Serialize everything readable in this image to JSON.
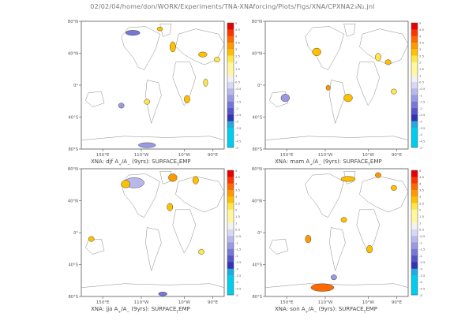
{
  "figure_title": "02/02/04/home/don/WORK/Experiments/TNA-XNAforcing/Plots/Figs/XNA/CPXNA2₃N₂.jnl",
  "colors": {
    "frame": "#555555",
    "coast": "#8a8a8a",
    "positive": [
      "#fff7a0",
      "#ffe64d",
      "#ffc000",
      "#ff9900",
      "#ff6a00",
      "#ff3300",
      "#e60000"
    ],
    "negative": [
      "#d8d8f4",
      "#b8b8ec",
      "#9a9ae2",
      "#7777d6",
      "#5555c8",
      "#3333b8",
      "#22aadd",
      "#00ccee"
    ],
    "contour": "#222222"
  },
  "colorbar_labels": [
    "5",
    "4.5",
    "4",
    "3.5",
    "3",
    "2.5",
    "2",
    "1.5",
    "1",
    "0.5",
    "-0.5",
    "-1",
    "-1.5",
    "-2",
    "-2.5",
    "-3",
    "-3.5",
    "-4",
    "-4.5",
    "-5"
  ],
  "chart_data": [
    {
      "type": "heatmap",
      "title": "XNA: djf A+/A- (9yrs): SURFACE_EMP",
      "title_parts": {
        "season": "XNA: djf A",
        "sub1": "+",
        "mid": "/A",
        "sub2": "−",
        "tail": " (9yrs): SURFACE",
        "sub3": "T",
        "end": "EMP"
      },
      "xticks": [
        "150°E",
        "110°W",
        "10°W",
        "90°E"
      ],
      "yticks": [
        "80°N",
        "40°N",
        "0°",
        "40°S",
        "80°S"
      ],
      "ylim": [
        -80,
        80
      ],
      "clim": [
        -5,
        5
      ]
    },
    {
      "type": "heatmap",
      "title": "XNA: mam A+/A- (9yrs): SURFACE_EMP",
      "title_parts": {
        "season": "XNA: mam A",
        "sub1": "+",
        "mid": "/A",
        "sub2": "−",
        "tail": " (9yrs): SURFACE",
        "sub3": "T",
        "end": "EMP"
      },
      "xticks": [
        "150°E",
        "110°W",
        "10°W",
        "90°E"
      ],
      "yticks": [
        "80°N",
        "40°N",
        "0°",
        "40°S",
        "80°S"
      ],
      "ylim": [
        -80,
        80
      ],
      "clim": [
        -5,
        5
      ]
    },
    {
      "type": "heatmap",
      "title": "XNA: jja A+/A- (9yrs): SURFACE_EMP",
      "title_parts": {
        "season": "XNA: jja A",
        "sub1": "+",
        "mid": "/A",
        "sub2": "−",
        "tail": " (9yrs): SURFACE",
        "sub3": "T",
        "end": "EMP"
      },
      "xticks": [
        "150°E",
        "110°W",
        "10°W",
        "90°E"
      ],
      "yticks": [
        "80°N",
        "40°N",
        "0°",
        "40°S",
        "80°S"
      ],
      "ylim": [
        -80,
        80
      ],
      "clim": [
        -5,
        5
      ]
    },
    {
      "type": "heatmap",
      "title": "XNA: son A+/A- (9yrs): SURFACE_EMP",
      "title_parts": {
        "season": "XNA: son A",
        "sub1": "+",
        "mid": "/A",
        "sub2": "−",
        "tail": " (9yrs): SURFACE",
        "sub3": "T",
        "end": "EMP"
      },
      "xticks": [
        "150°E",
        "110°W",
        "10°W",
        "90°E"
      ],
      "yticks": [
        "80°N",
        "40°N",
        "0°",
        "40°S",
        "80°S"
      ],
      "ylim": [
        -80,
        80
      ],
      "clim": [
        -5,
        5
      ]
    }
  ]
}
